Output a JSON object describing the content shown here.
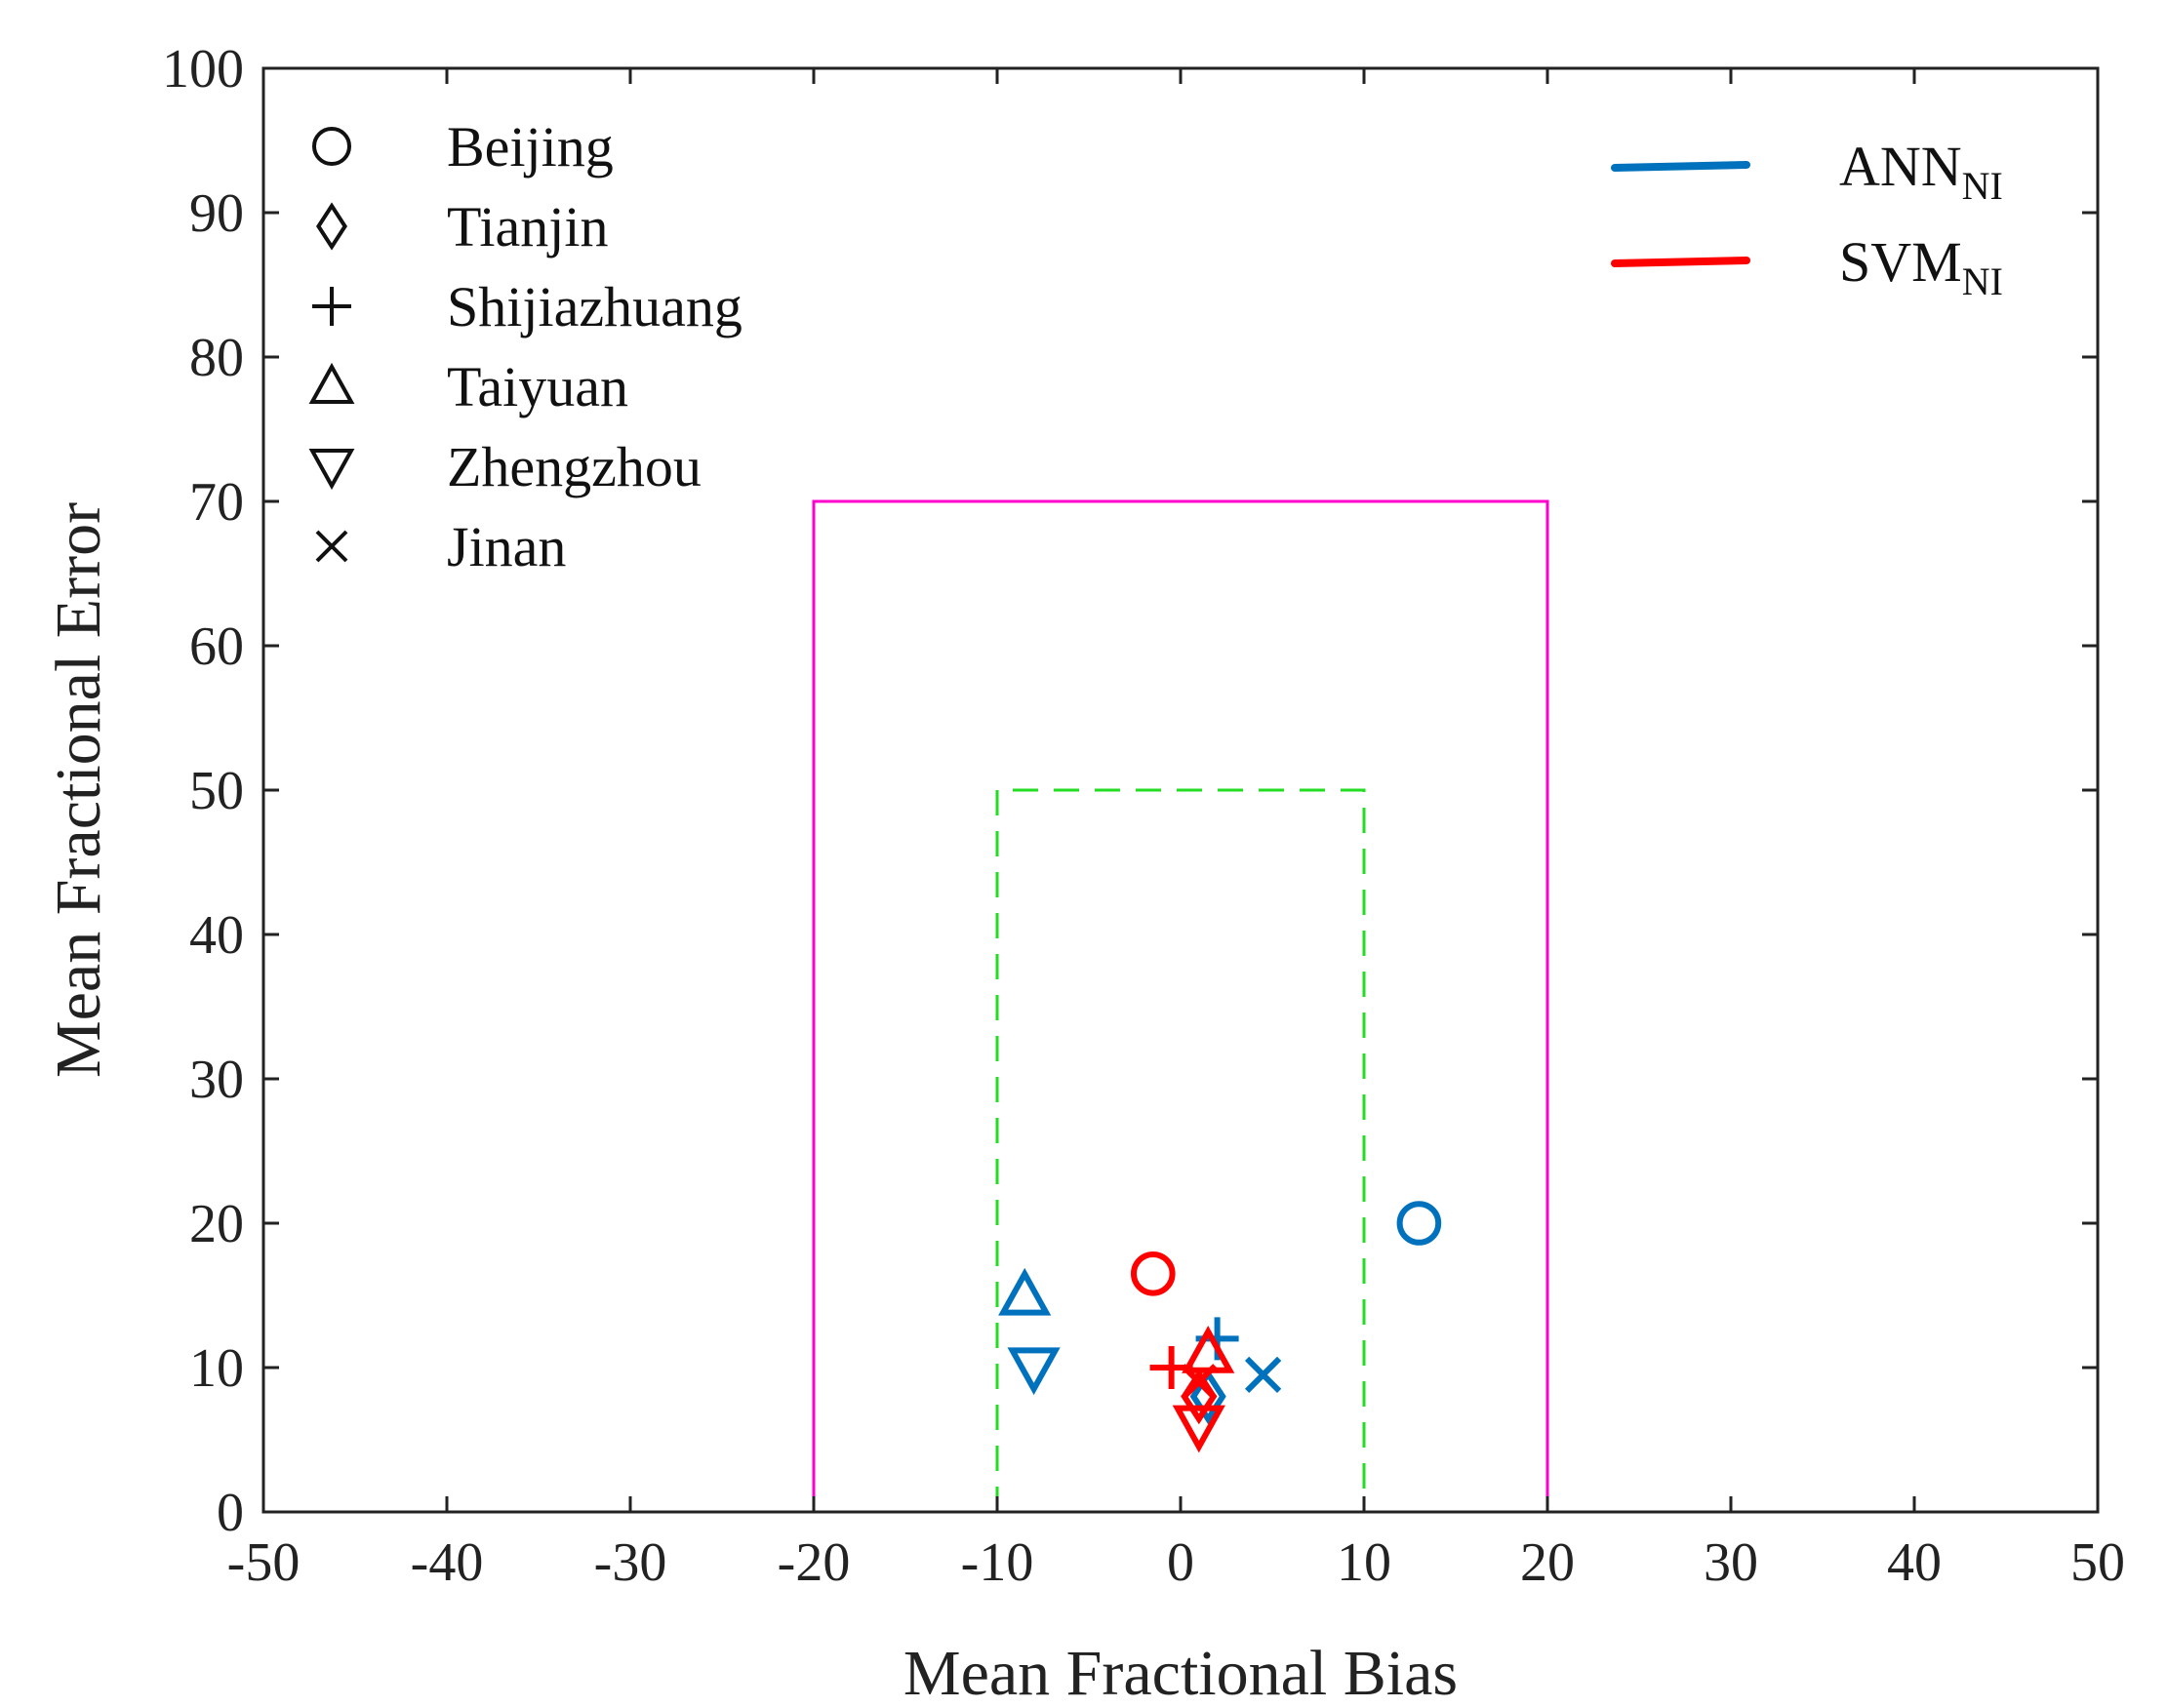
{
  "chart_data": {
    "type": "scatter",
    "xlabel": "Mean Fractional Bias",
    "ylabel": "Mean Fractional Error",
    "xlim": [
      -50,
      50
    ],
    "ylim": [
      0,
      100
    ],
    "xticks": [
      "-50",
      "-40",
      "-30",
      "-20",
      "-10",
      "0",
      "10",
      "20",
      "30",
      "40",
      "50"
    ],
    "yticks": [
      "0",
      "10",
      "20",
      "30",
      "40",
      "50",
      "60",
      "70",
      "80",
      "90",
      "100"
    ],
    "grid": false,
    "marker_legend": [
      {
        "marker": "circle",
        "symbol": "O",
        "label": "Beijing"
      },
      {
        "marker": "diamond",
        "symbol": "◇",
        "label": "Tianjin"
      },
      {
        "marker": "plus",
        "symbol": "+",
        "label": "Shijiazhuang"
      },
      {
        "marker": "triangle-up",
        "symbol": "△",
        "label": "Taiyuan"
      },
      {
        "marker": "triangle-down",
        "symbol": "▽",
        "label": "Zhengzhou"
      },
      {
        "marker": "x",
        "symbol": "×",
        "label": "Jinan"
      }
    ],
    "series": [
      {
        "name": "ANN",
        "subscript": "NI",
        "color": "#0072BD",
        "points": [
          {
            "city": "Beijing",
            "marker": "circle",
            "x": 13,
            "y": 20
          },
          {
            "city": "Tianjin",
            "marker": "diamond",
            "x": 1.5,
            "y": 8
          },
          {
            "city": "Shijiazhuang",
            "marker": "plus",
            "x": 2,
            "y": 12
          },
          {
            "city": "Taiyuan",
            "marker": "triangle-up",
            "x": -8.5,
            "y": 15
          },
          {
            "city": "Zhengzhou",
            "marker": "triangle-down",
            "x": -8,
            "y": 10
          },
          {
            "city": "Jinan",
            "marker": "x",
            "x": 4.5,
            "y": 9.5
          }
        ]
      },
      {
        "name": "SVM",
        "subscript": "NI",
        "color": "#FF0000",
        "points": [
          {
            "city": "Beijing",
            "marker": "circle",
            "x": -1.5,
            "y": 16.5
          },
          {
            "city": "Tianjin",
            "marker": "diamond",
            "x": 1,
            "y": 8
          },
          {
            "city": "Shijiazhuang",
            "marker": "plus",
            "x": -0.5,
            "y": 10
          },
          {
            "city": "Taiyuan",
            "marker": "triangle-up",
            "x": 1.5,
            "y": 11
          },
          {
            "city": "Zhengzhou",
            "marker": "triangle-down",
            "x": 1,
            "y": 6
          },
          {
            "city": "Jinan",
            "marker": "x",
            "x": 1,
            "y": 9
          }
        ]
      }
    ],
    "reference_boxes": [
      {
        "name": "criteria",
        "style": "solid",
        "color": "#FF00CC",
        "x_range": [
          -20,
          20
        ],
        "y_max": 70
      },
      {
        "name": "goal",
        "style": "dashed",
        "color": "#22DD22",
        "x_range": [
          -10,
          10
        ],
        "y_max": 50
      }
    ]
  }
}
